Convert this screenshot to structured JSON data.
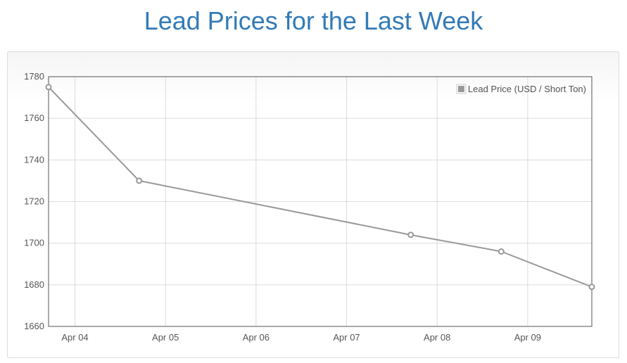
{
  "title": "Lead Prices for the Last Week",
  "chart_data": {
    "type": "line",
    "title": "Lead Prices for the Last Week",
    "xlabel": "",
    "ylabel": "",
    "x_tick_labels": [
      "Apr 04",
      "Apr 05",
      "Apr 06",
      "Apr 07",
      "Apr 08",
      "Apr 09"
    ],
    "x_range": [
      "Apr 03 17:00",
      "Apr 09 17:00"
    ],
    "ylim": [
      1660,
      1780
    ],
    "y_ticks": [
      1660,
      1680,
      1700,
      1720,
      1740,
      1760,
      1780
    ],
    "grid": true,
    "legend_position": "top-right",
    "series": [
      {
        "name": "Lead Price (USD / Short Ton)",
        "color": "#999999",
        "points": [
          {
            "x": "Apr 03 17:00",
            "y": 1775
          },
          {
            "x": "Apr 04 17:00",
            "y": 1730
          },
          {
            "x": "Apr 07 17:00",
            "y": 1704
          },
          {
            "x": "Apr 08 17:00",
            "y": 1696
          },
          {
            "x": "Apr 09 17:00",
            "y": 1679
          }
        ]
      }
    ]
  }
}
